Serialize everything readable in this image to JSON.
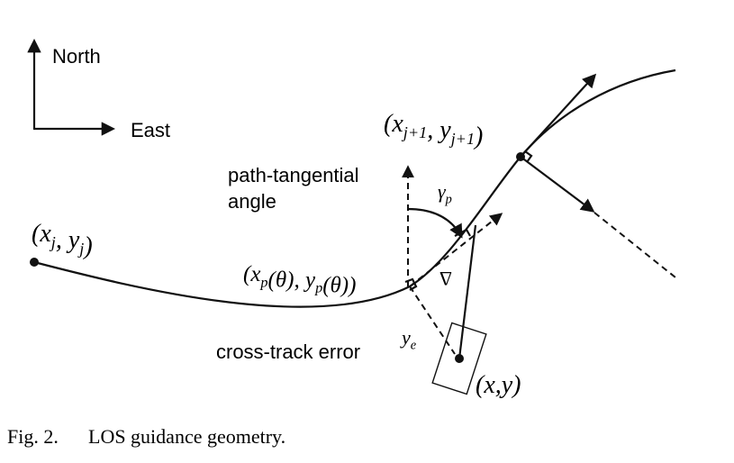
{
  "figure": {
    "compass": {
      "north": "North",
      "east": "East"
    },
    "labels": {
      "next_waypoint": [
        {
          "text": "(x"
        },
        {
          "sub": "j+1"
        },
        {
          "text": ", y"
        },
        {
          "sub": "j+1"
        },
        {
          "text": ")"
        }
      ],
      "waypoint": [
        {
          "text": "(x"
        },
        {
          "sub": "j"
        },
        {
          "text": ", y"
        },
        {
          "sub": "j"
        },
        {
          "text": ")"
        }
      ],
      "path_point": [
        {
          "text": "(x"
        },
        {
          "sub": "p"
        },
        {
          "text": "(θ), y"
        },
        {
          "sub": "p"
        },
        {
          "text": "(θ))"
        }
      ],
      "gamma": [
        {
          "text": "γ"
        },
        {
          "sub": "p"
        }
      ],
      "ye": [
        {
          "text": "y"
        },
        {
          "sub": "e"
        }
      ],
      "vessel": [
        {
          "text": "(x,y)"
        }
      ],
      "delta": [
        {
          "text": "Δ"
        }
      ]
    },
    "annotations": {
      "path_tangential_line1": "path-tangential",
      "path_tangential_line2": "angle",
      "cross_track": "cross-track error"
    },
    "caption": {
      "number": "Fig. 2.",
      "text": "LOS guidance geometry."
    }
  }
}
